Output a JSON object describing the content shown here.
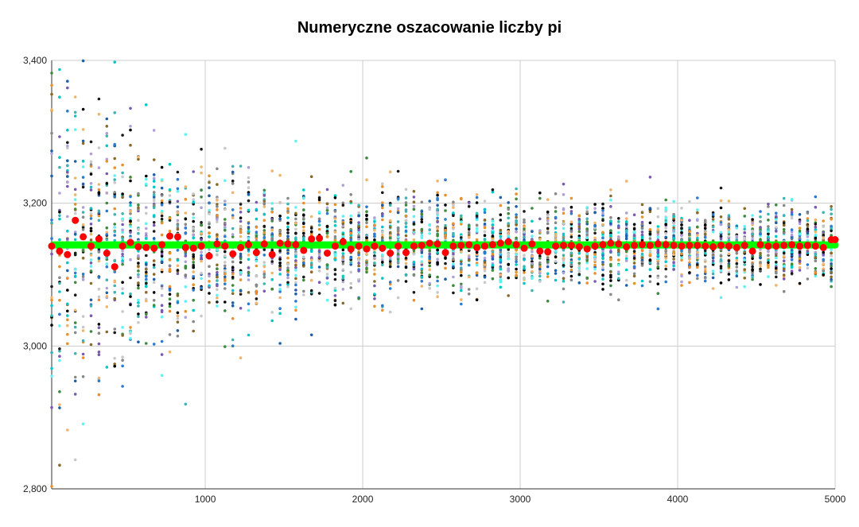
{
  "chart_data": {
    "type": "scatter",
    "title": "Numeryczne oszacowanie liczby pi",
    "xlabel": "",
    "ylabel": "",
    "xlim": [
      25,
      5000
    ],
    "ylim": [
      2.8,
      3.4
    ],
    "x_ticks": [
      1000,
      2000,
      3000,
      4000,
      5000
    ],
    "x_tick_labels": [
      "1000",
      "2000",
      "3000",
      "4000",
      "5000"
    ],
    "y_ticks": [
      2.8,
      3.0,
      3.2,
      3.4
    ],
    "y_tick_labels": [
      "2,800",
      "3,000",
      "3,200",
      "3,400"
    ],
    "grid": true,
    "legend": "none",
    "reference_value": 3.14159,
    "reference_color": "#00ff00",
    "x_step": 50,
    "trials_per_step": 40,
    "trial_colors": [
      "#000000",
      "#1a1a1a",
      "#1f5fa8",
      "#2b7bd1",
      "#00c8c8",
      "#5ff2f2",
      "#3cb4b4",
      "#e8902c",
      "#f2b36a",
      "#8a6a2a",
      "#7a5ab0",
      "#b0a0d8",
      "#888888",
      "#c8c8c8",
      "#3d8b3d"
    ],
    "mean_series": {
      "name": "",
      "color": "#ff0000",
      "x": [
        25,
        75,
        125,
        175,
        225,
        275,
        325,
        375,
        425,
        475,
        525,
        575,
        625,
        675,
        725,
        775,
        825,
        875,
        925,
        975,
        1025,
        1075,
        1125,
        1175,
        1225,
        1275,
        1325,
        1375,
        1425,
        1475,
        1525,
        1575,
        1625,
        1675,
        1725,
        1775,
        1825,
        1875,
        1925,
        1975,
        2025,
        2075,
        2125,
        2175,
        2225,
        2275,
        2325,
        2375,
        2425,
        2475,
        2525,
        2575,
        2625,
        2675,
        2725,
        2775,
        2825,
        2875,
        2925,
        2975,
        3025,
        3075,
        3125,
        3175,
        3225,
        3275,
        3325,
        3375,
        3425,
        3475,
        3525,
        3575,
        3625,
        3675,
        3725,
        3775,
        3825,
        3875,
        3925,
        3975,
        4025,
        4075,
        4125,
        4175,
        4225,
        4275,
        4325,
        4375,
        4425,
        4475,
        4525,
        4575,
        4625,
        4675,
        4725,
        4775,
        4825,
        4875,
        4925,
        4975,
        5000
      ],
      "values": [
        3.14,
        3.133,
        3.128,
        3.176,
        3.153,
        3.14,
        3.15,
        3.13,
        3.111,
        3.14,
        3.145,
        3.139,
        3.138,
        3.137,
        3.142,
        3.154,
        3.153,
        3.138,
        3.137,
        3.14,
        3.126,
        3.143,
        3.14,
        3.129,
        3.138,
        3.142,
        3.131,
        3.143,
        3.128,
        3.144,
        3.143,
        3.142,
        3.134,
        3.15,
        3.151,
        3.13,
        3.14,
        3.146,
        3.136,
        3.14,
        3.136,
        3.14,
        3.137,
        3.13,
        3.14,
        3.131,
        3.14,
        3.141,
        3.144,
        3.143,
        3.131,
        3.14,
        3.141,
        3.142,
        3.138,
        3.14,
        3.142,
        3.144,
        3.146,
        3.142,
        3.137,
        3.143,
        3.133,
        3.132,
        3.14,
        3.141,
        3.141,
        3.139,
        3.136,
        3.14,
        3.142,
        3.144,
        3.143,
        3.139,
        3.141,
        3.142,
        3.141,
        3.143,
        3.142,
        3.141,
        3.14,
        3.141,
        3.141,
        3.14,
        3.139,
        3.141,
        3.14,
        3.138,
        3.141,
        3.133,
        3.142,
        3.14,
        3.14,
        3.141,
        3.142,
        3.14,
        3.141,
        3.14,
        3.138,
        3.149,
        3.149
      ]
    }
  }
}
